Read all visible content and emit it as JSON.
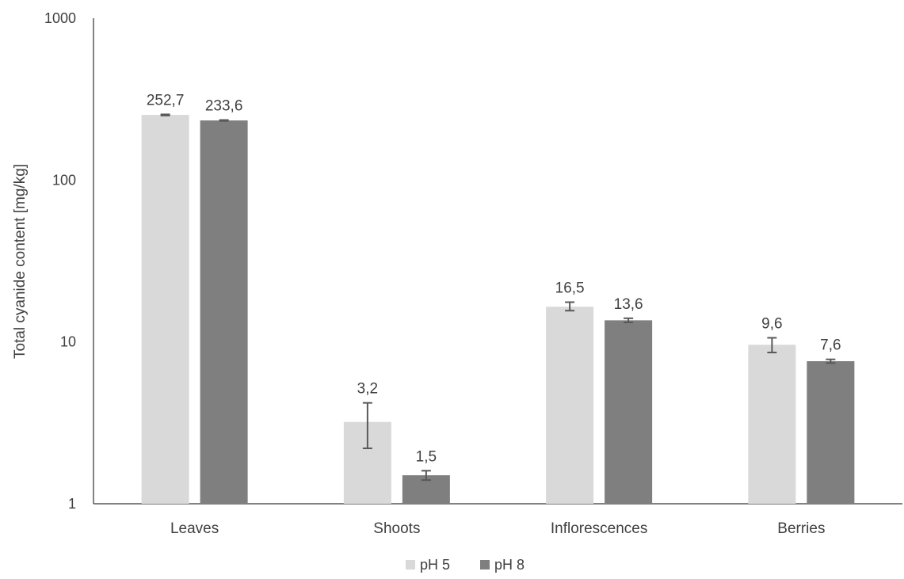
{
  "chart_data": {
    "type": "bar",
    "categories": [
      "Leaves",
      "Shoots",
      "Inflorescences",
      "Berries"
    ],
    "series": [
      {
        "name": "pH 5",
        "color": "#d9d9d9",
        "values": [
          252.7,
          3.2,
          16.5,
          9.6
        ],
        "labels": [
          "252,7",
          "3,2",
          "16,5",
          "9,6"
        ],
        "error_low": [
          250.5,
          2.2,
          15.6,
          8.6
        ],
        "error_high": [
          254.5,
          4.2,
          17.6,
          10.6
        ]
      },
      {
        "name": "pH 8",
        "color": "#7f7f7f",
        "values": [
          233.6,
          1.5,
          13.6,
          7.6
        ],
        "labels": [
          "233,6",
          "1,5",
          "13,6",
          "7,6"
        ],
        "error_low": [
          232.0,
          1.4,
          13.2,
          7.4
        ],
        "error_high": [
          235.0,
          1.6,
          14.0,
          7.8
        ]
      }
    ],
    "ylabel": "Total cyanide content [mg/kg]",
    "xlabel": "",
    "title": "",
    "y_scale": "log",
    "ylim": [
      1,
      1000
    ],
    "y_ticks": [
      1,
      10,
      100,
      1000
    ],
    "y_tick_labels": [
      "1",
      "10",
      "100",
      "1000"
    ],
    "grid": false,
    "legend_position": "bottom"
  }
}
